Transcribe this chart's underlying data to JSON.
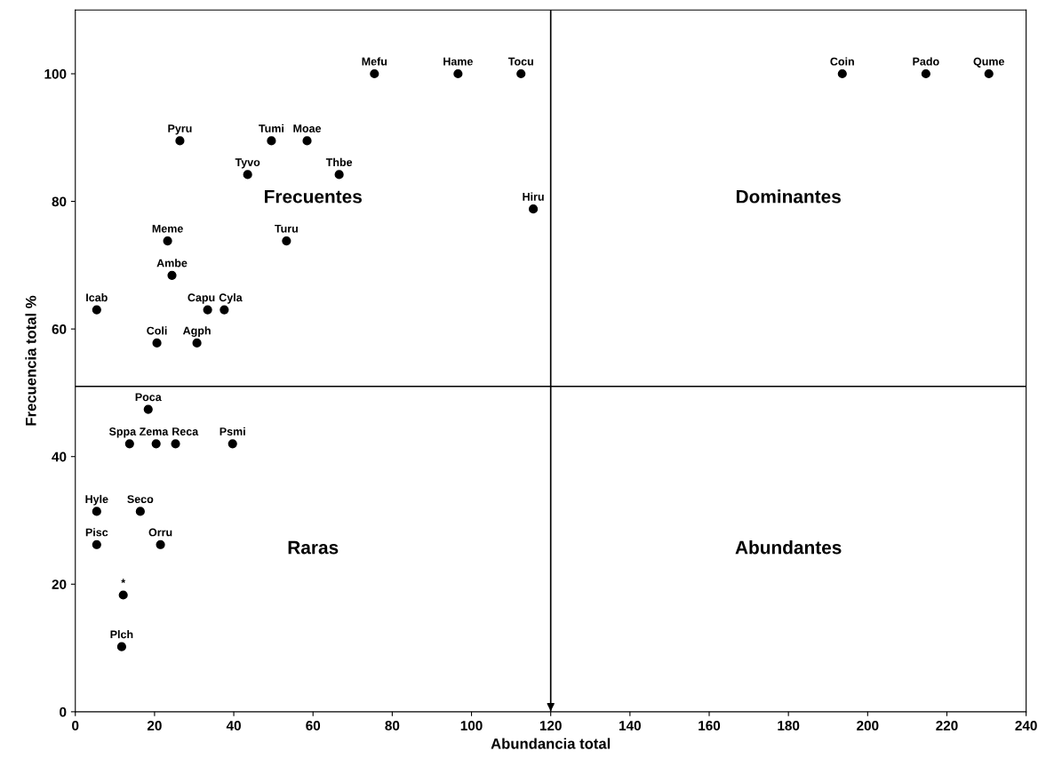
{
  "chart_data": {
    "type": "scatter",
    "xlabel": "Abundancia total",
    "ylabel": "Frecuencia total %",
    "x": [
      75.5,
      96.6,
      112.5,
      193.6,
      214.7,
      230.6,
      26.4,
      49.5,
      58.5,
      43.5,
      66.6,
      115.6,
      23.3,
      53.3,
      24.4,
      5.4,
      33.4,
      37.6,
      20.6,
      30.7,
      18.4,
      13.7,
      20.4,
      25.3,
      39.7,
      5.4,
      16.4,
      5.4,
      21.5,
      12.1,
      11.7
    ],
    "series": [
      {
        "color": "#000000",
        "values": [
          100,
          100,
          100,
          100,
          100,
          100,
          89.5,
          89.5,
          89.5,
          84.2,
          84.2,
          78.8,
          73.8,
          73.8,
          68.4,
          63.0,
          63.0,
          63.0,
          57.8,
          57.8,
          47.4,
          42.0,
          42.0,
          42.0,
          42.0,
          31.4,
          31.4,
          26.2,
          26.2,
          18.3,
          10.2
        ]
      }
    ],
    "marker": "circle",
    "xlim": [
      0,
      240
    ],
    "ylim": [
      0,
      110
    ],
    "xticks": [
      0,
      20,
      40,
      60,
      80,
      100,
      120,
      140,
      160,
      180,
      200,
      220,
      240
    ],
    "yticks": [
      0,
      20,
      40,
      60,
      80,
      100
    ],
    "grid": false,
    "legend": false,
    "ref_lines": [
      {
        "axis": "x",
        "value": 120,
        "color": "#000000"
      },
      {
        "axis": "y",
        "value": 51,
        "color": "#000000"
      }
    ],
    "annotations": [
      "Frecuentes",
      "Dominantes",
      "Raras",
      "Abundantes",
      {
        "text": "Mefu",
        "x": 75.5,
        "y": 100
      },
      {
        "text": "Hame",
        "x": 96.6,
        "y": 100
      },
      {
        "text": "Tocu",
        "x": 112.5,
        "y": 100
      },
      {
        "text": "Coin",
        "x": 193.6,
        "y": 100
      },
      {
        "text": "Pado",
        "x": 214.7,
        "y": 100
      },
      {
        "text": "Qume",
        "x": 230.6,
        "y": 100
      },
      {
        "text": "Pyru",
        "x": 26.4,
        "y": 89.5
      },
      {
        "text": "Tumi",
        "x": 49.5,
        "y": 89.5
      },
      {
        "text": "Moae",
        "x": 58.5,
        "y": 89.5
      },
      {
        "text": "Tyvo",
        "x": 43.5,
        "y": 84.2
      },
      {
        "text": "Thbe",
        "x": 66.6,
        "y": 84.2
      },
      {
        "text": "Hiru",
        "x": 115.6,
        "y": 78.8
      },
      {
        "text": "Meme",
        "x": 23.3,
        "y": 73.8
      },
      {
        "text": "Turu",
        "x": 53.3,
        "y": 73.8
      },
      {
        "text": "Ambe",
        "x": 24.4,
        "y": 68.4
      },
      {
        "text": "Icab",
        "x": 5.4,
        "y": 63.0
      },
      {
        "text": "Capu",
        "x": 33.4,
        "y": 63.0
      },
      {
        "text": "Cyla",
        "x": 37.6,
        "y": 63.0
      },
      {
        "text": "Coli",
        "x": 20.6,
        "y": 57.8
      },
      {
        "text": "Agph",
        "x": 30.7,
        "y": 57.8
      },
      {
        "text": "Poca",
        "x": 18.4,
        "y": 47.4
      },
      {
        "text": "Sppa",
        "x": 13.7,
        "y": 42.0
      },
      {
        "text": "Zema",
        "x": 20.4,
        "y": 42.0
      },
      {
        "text": "Reca",
        "x": 25.3,
        "y": 42.0
      },
      {
        "text": "Psmi",
        "x": 39.7,
        "y": 42.0
      },
      {
        "text": "Hyle",
        "x": 5.4,
        "y": 31.4
      },
      {
        "text": "Seco",
        "x": 16.4,
        "y": 31.4
      },
      {
        "text": "Pisc",
        "x": 5.4,
        "y": 26.2
      },
      {
        "text": "Orru",
        "x": 21.5,
        "y": 26.2
      },
      {
        "text": "*",
        "x": 12.1,
        "y": 18.3
      },
      {
        "text": "Plch",
        "x": 11.7,
        "y": 10.2
      }
    ]
  }
}
